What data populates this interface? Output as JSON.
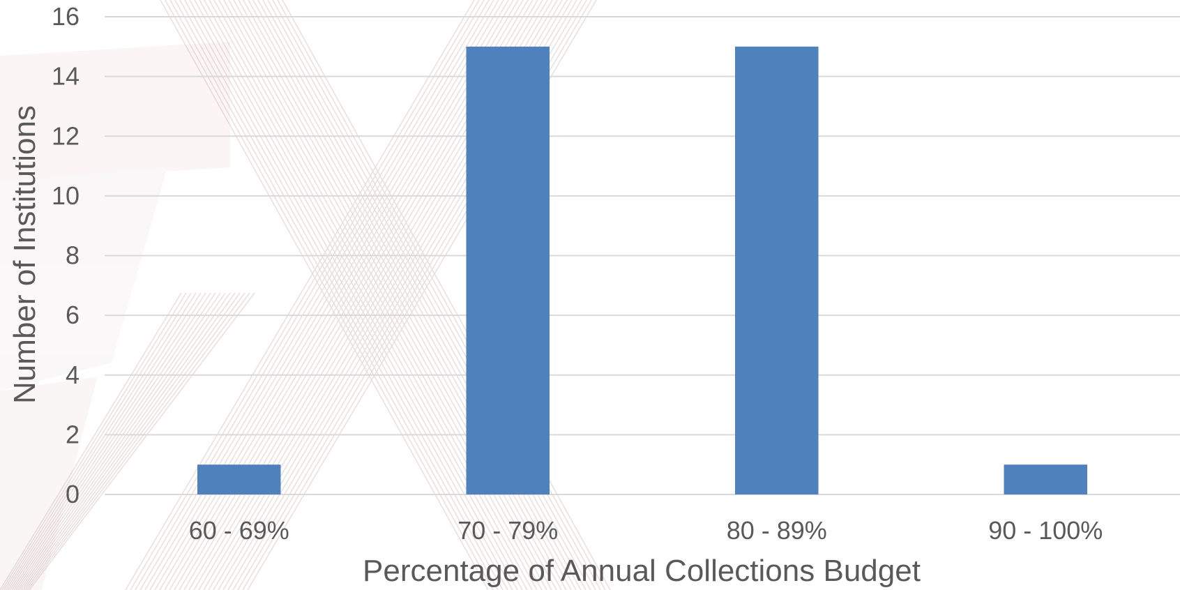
{
  "chart_data": {
    "type": "bar",
    "categories": [
      "60 - 69%",
      "70 - 79%",
      "80 - 89%",
      "90 - 100%"
    ],
    "values": [
      1,
      15,
      15,
      1
    ],
    "xlabel": "Percentage of Annual Collections Budget",
    "ylabel": "Number of Institutions",
    "ylim": [
      0,
      16
    ],
    "yticks": [
      0,
      2,
      4,
      6,
      8,
      10,
      12,
      14,
      16
    ],
    "grid": true,
    "legend": "none",
    "bar_color": "#4f81bd",
    "grid_color": "#d9d9d9",
    "text_color": "#595959"
  }
}
